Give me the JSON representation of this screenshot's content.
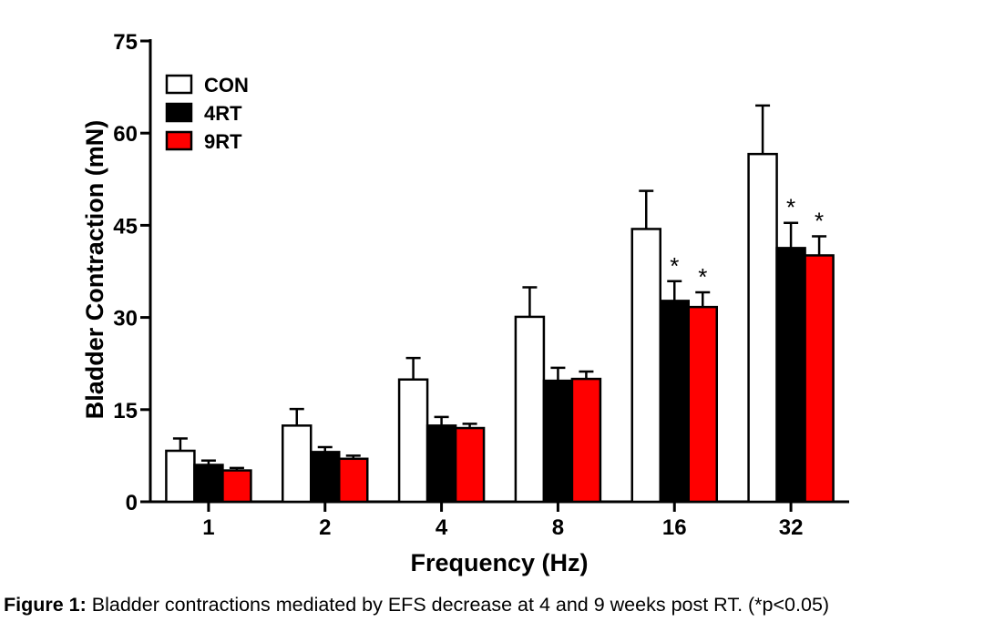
{
  "chart_data": {
    "type": "bar",
    "xlabel": "Frequency (Hz)",
    "ylabel": "Bladder Contraction (mN)",
    "ylim": [
      0,
      75
    ],
    "yticks": [
      "0",
      "15",
      "30",
      "45",
      "60",
      "75"
    ],
    "categories": [
      "1",
      "2",
      "4",
      "8",
      "16",
      "32"
    ],
    "series": [
      {
        "name": "CON",
        "color": "#ffffff",
        "values": [
          8.3,
          12.4,
          19.9,
          30.1,
          44.4,
          56.6
        ],
        "errors": [
          2.0,
          2.7,
          3.5,
          4.8,
          6.2,
          7.9
        ],
        "significant": [
          false,
          false,
          false,
          false,
          false,
          false
        ]
      },
      {
        "name": "4RT",
        "color": "#000000",
        "values": [
          6.0,
          8.1,
          12.4,
          19.7,
          32.7,
          41.3
        ],
        "errors": [
          0.7,
          0.8,
          1.4,
          2.1,
          3.2,
          4.1
        ],
        "significant": [
          false,
          false,
          false,
          false,
          true,
          true
        ]
      },
      {
        "name": "9RT",
        "color": "#ff0000",
        "values": [
          5.1,
          7.0,
          12.0,
          20.0,
          31.7,
          40.1
        ],
        "errors": [
          0.4,
          0.5,
          0.7,
          1.2,
          2.4,
          3.1
        ],
        "significant": [
          false,
          false,
          false,
          false,
          true,
          true
        ]
      }
    ],
    "significance_marker": "*",
    "legend_position": "top-left",
    "grid": false
  },
  "caption": {
    "label": "Figure 1:",
    "text": " Bladder contractions mediated by EFS decrease at 4 and 9 weeks post RT. (*p<0.05)"
  }
}
